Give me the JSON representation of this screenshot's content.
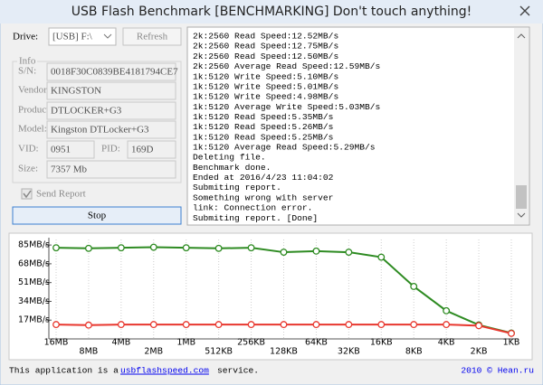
{
  "window": {
    "title": "USB Flash Benchmark [BENCHMARKING] Don't touch anything!"
  },
  "drive": {
    "label": "Drive:",
    "value": "[USB] F:\\",
    "refresh": "Refresh"
  },
  "info": {
    "title": "Info",
    "fields": [
      {
        "label": "S/N:",
        "value": "0018F30C0839BE4181794CE7"
      },
      {
        "label": "Vendor:",
        "value": "KINGSTON"
      },
      {
        "label": "Product:",
        "value": "DTLOCKER+G3"
      },
      {
        "label": "Model:",
        "value": "Kingston DTLocker+G3"
      }
    ],
    "ids": [
      {
        "label": "VID:",
        "value": "0951"
      },
      {
        "label": "PID:",
        "value": "169D"
      }
    ],
    "size": {
      "label": "Size:",
      "value": "7357 Mb"
    }
  },
  "send_report": "Send Report",
  "stop": "Stop",
  "log": [
    "2k:2560 Read Speed:12.52MB/s",
    "2k:2560 Read Speed:12.75MB/s",
    "2k:2560 Read Speed:12.50MB/s",
    "2k:2560 Average Read Speed:12.59MB/s",
    "1k:5120 Write Speed:5.10MB/s",
    "1k:5120 Write Speed:5.01MB/s",
    "1k:5120 Write Speed:4.98MB/s",
    "1k:5120 Average Write Speed:5.03MB/s",
    "1k:5120 Read Speed:5.35MB/s",
    "1k:5120 Read Speed:5.26MB/s",
    "1k:5120 Read Speed:5.25MB/s",
    "1k:5120 Average Read Speed:5.29MB/s",
    "Deleting file.",
    "Benchmark done.",
    "Ended at 2016/4/23 11:04:02",
    "Submiting report.",
    "Something wrong with server",
    "link: Connection error.",
    "Submiting report. [Done]"
  ],
  "chart_data": {
    "type": "line",
    "categories": [
      "16MB",
      "8MB",
      "4MB",
      "2MB",
      "1MB",
      "512KB",
      "256KB",
      "128KB",
      "64KB",
      "32KB",
      "16KB",
      "8KB",
      "4KB",
      "2KB",
      "1KB"
    ],
    "series": [
      {
        "color": "#2e8b22",
        "values": [
          82.5,
          82,
          82.5,
          83,
          82.5,
          82,
          82.5,
          78.5,
          79.5,
          78.5,
          74,
          47.5,
          25.5,
          12.6,
          5.3
        ]
      },
      {
        "color": "#e8372e",
        "values": [
          13,
          12.5,
          13,
          13,
          13,
          13,
          13,
          13,
          13,
          13,
          13,
          13,
          13,
          12,
          5
        ]
      }
    ],
    "ylim": [
      0,
      90
    ],
    "yticks": [
      {
        "value": 17,
        "label": "17MB/s"
      },
      {
        "value": 34,
        "label": "34MB/s"
      },
      {
        "value": 51,
        "label": "51MB/s"
      },
      {
        "value": 68,
        "label": "68MB/s"
      },
      {
        "value": 85,
        "label": "85MB/s"
      }
    ]
  },
  "footer": {
    "text": "This application is a",
    "link": "usbflashspeed.com",
    "suffix": "service.",
    "copyright": "2010 © Hean.ru"
  }
}
